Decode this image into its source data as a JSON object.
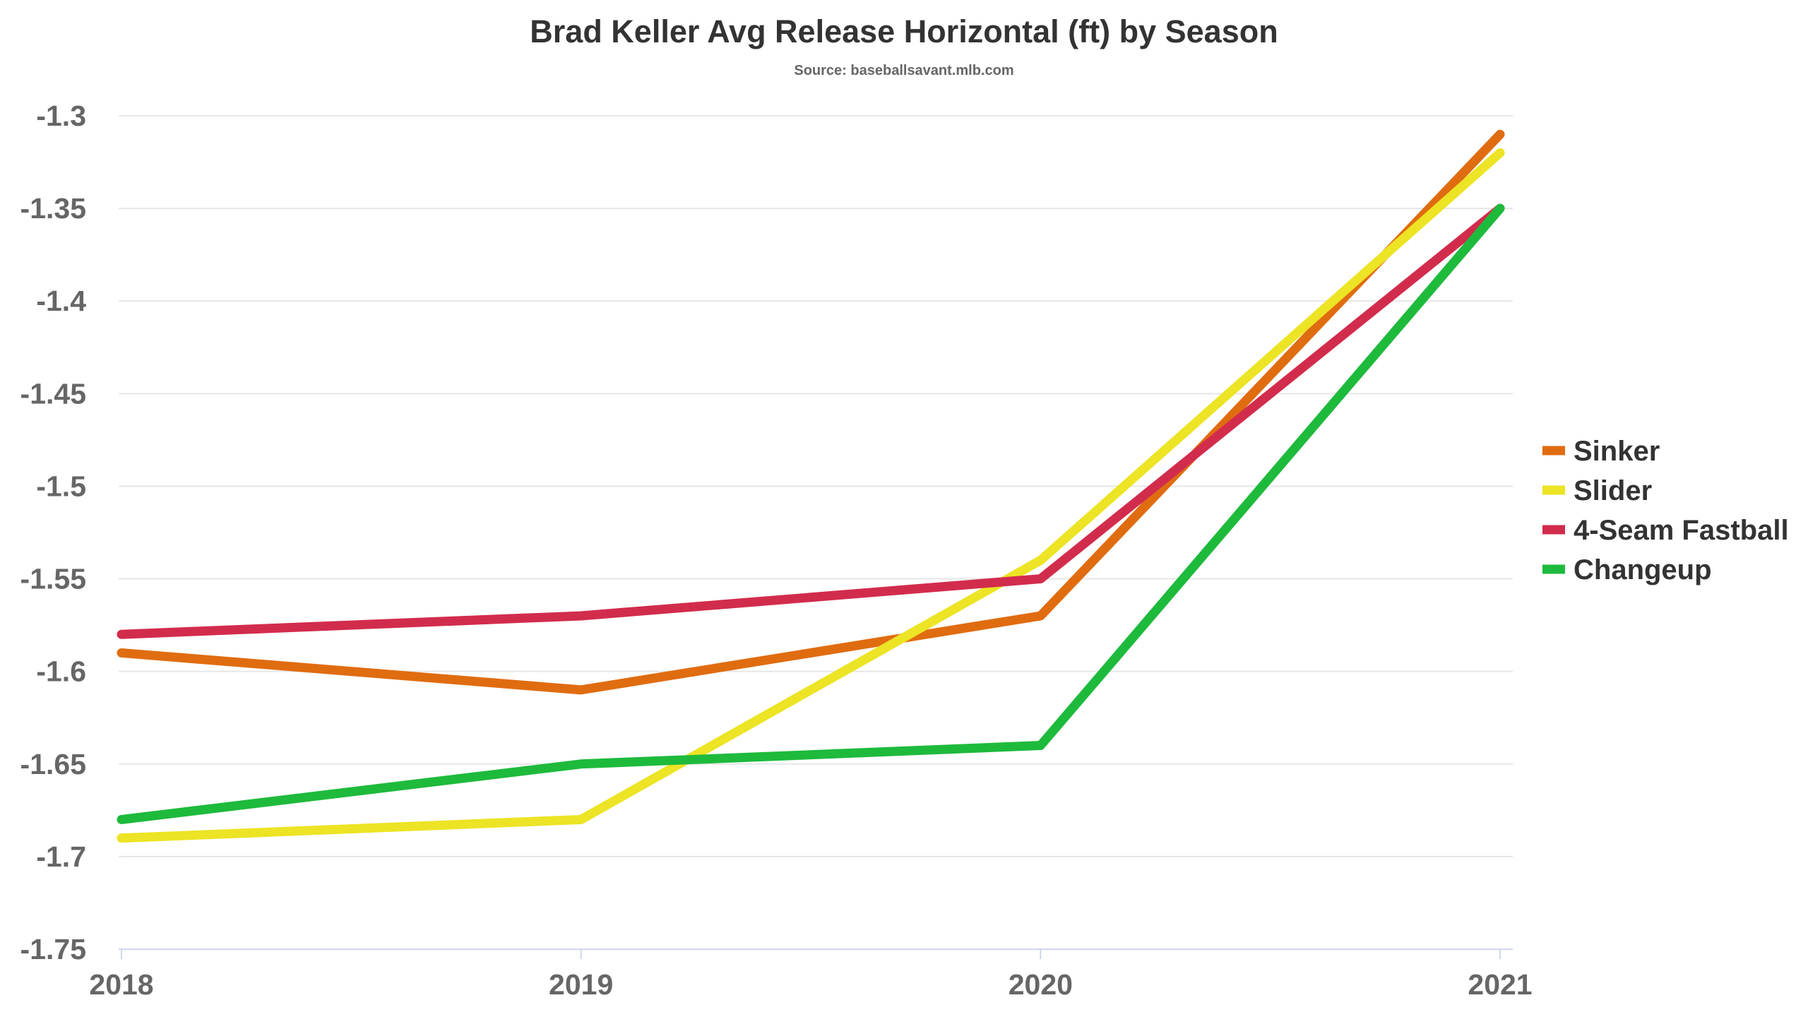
{
  "chart_data": {
    "type": "line",
    "title": "Brad Keller Avg Release Horizontal (ft) by Season",
    "subtitle": "Source: baseballsavant.mlb.com",
    "xlabel": "",
    "ylabel": "",
    "categories": [
      "2018",
      "2019",
      "2020",
      "2021"
    ],
    "ylim": [
      -1.75,
      -1.3
    ],
    "yticks": [
      -1.3,
      -1.35,
      -1.4,
      -1.45,
      -1.5,
      -1.55,
      -1.6,
      -1.65,
      -1.7,
      -1.75
    ],
    "ytick_labels": [
      "-1.3",
      "-1.35",
      "-1.4",
      "-1.45",
      "-1.5",
      "-1.55",
      "-1.6",
      "-1.65",
      "-1.7",
      "-1.75"
    ],
    "grid": true,
    "legend_position": "right",
    "series": [
      {
        "name": "Sinker",
        "color": "#e06c10",
        "values": [
          -1.59,
          -1.61,
          -1.57,
          -1.31
        ]
      },
      {
        "name": "Slider",
        "color": "#ece424",
        "values": [
          -1.69,
          -1.68,
          -1.54,
          -1.32
        ]
      },
      {
        "name": "4-Seam Fastball",
        "color": "#d22c4c",
        "values": [
          -1.58,
          -1.57,
          -1.55,
          -1.35
        ]
      },
      {
        "name": "Changeup",
        "color": "#1eba3c",
        "values": [
          -1.68,
          -1.65,
          -1.64,
          -1.35
        ]
      }
    ]
  }
}
